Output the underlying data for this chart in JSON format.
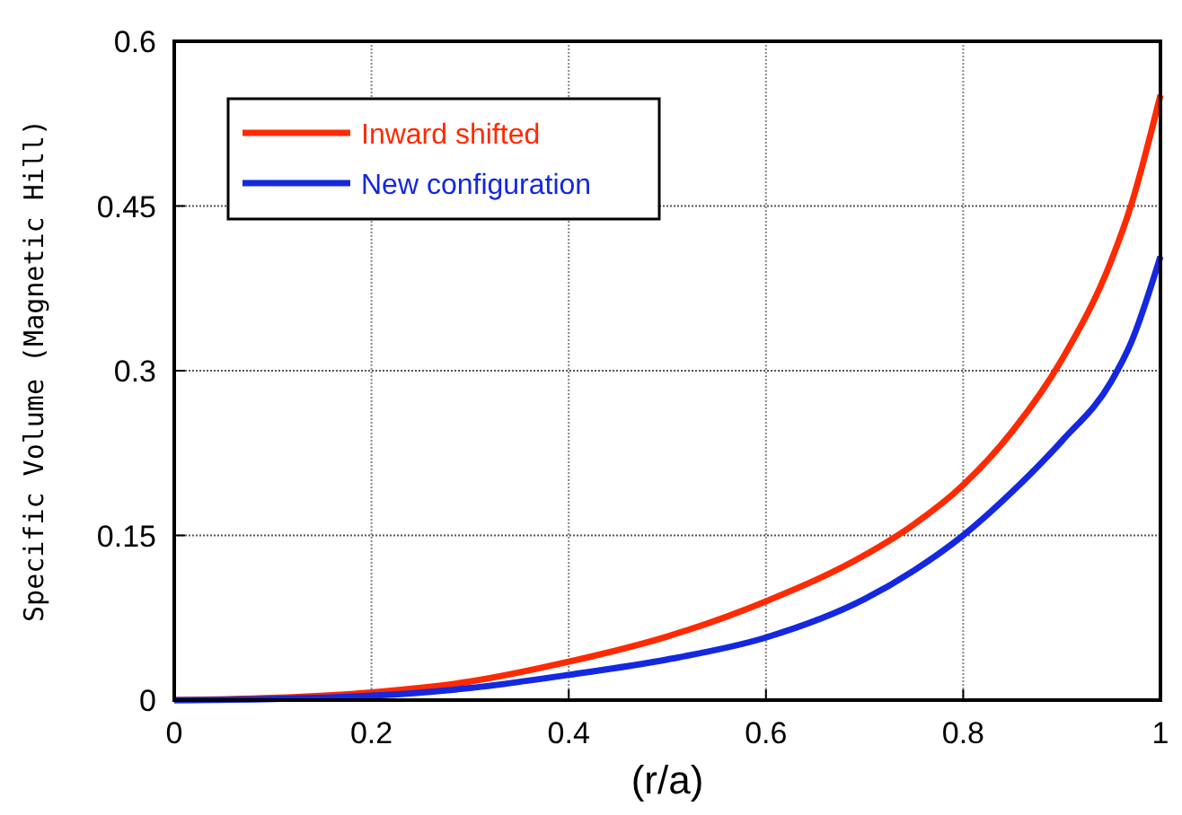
{
  "chart_data": {
    "type": "line",
    "xlabel": "(r/a)",
    "ylabel": "Specific Volume (Magnetic Hill)",
    "xlim": [
      0,
      1
    ],
    "ylim": [
      0,
      0.6
    ],
    "xticks": [
      0,
      0.2,
      0.4,
      0.6,
      0.8,
      1
    ],
    "yticks": [
      0,
      0.15,
      0.3,
      0.45,
      0.6
    ],
    "grid": true,
    "legend": "top left",
    "line_style": "solid",
    "x": [
      0,
      0.1,
      0.2,
      0.3,
      0.4,
      0.5,
      0.6,
      0.7,
      0.75,
      0.8,
      0.85,
      0.9,
      0.95,
      0.97,
      1
    ],
    "series": [
      {
        "name": "Inward shifted",
        "color": "#ff2a00",
        "values": [
          0,
          0.002,
          0.007,
          0.017,
          0.035,
          0.058,
          0.09,
          0.132,
          0.16,
          0.196,
          0.245,
          0.31,
          0.4,
          0.45,
          0.551
        ]
      },
      {
        "name": "New configuration",
        "color": "#1428e0",
        "values": [
          0,
          0.001,
          0.004,
          0.011,
          0.023,
          0.037,
          0.057,
          0.092,
          0.118,
          0.15,
          0.19,
          0.236,
          0.29,
          0.325,
          0.404
        ]
      }
    ]
  }
}
